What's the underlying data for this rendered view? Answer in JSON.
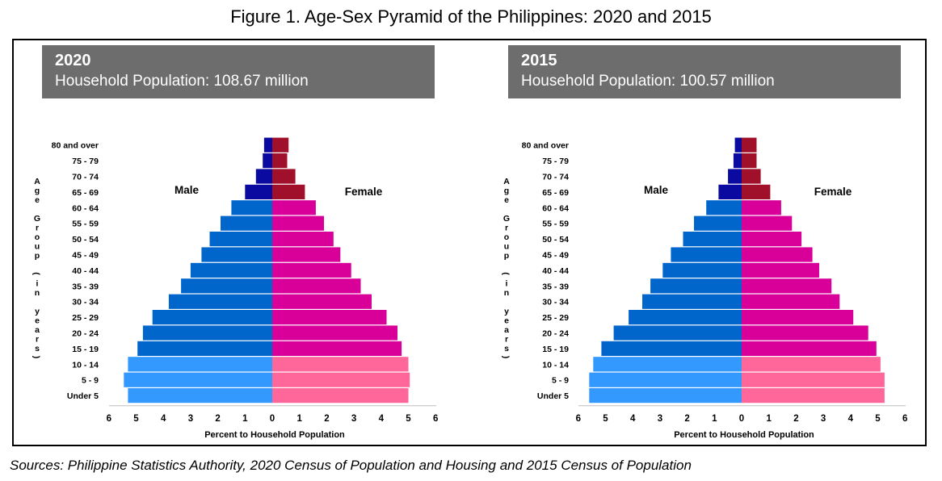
{
  "figure_title": "Figure 1. Age-Sex Pyramid of the Philippines: 2020 and 2015",
  "sources": "Sources: Philippine Statistics Authority, 2020 Census of Population and Housing and 2015 Census of Population",
  "colors": {
    "male_old": "#0a0aa0",
    "male_mid": "#0066cc",
    "male_young": "#3399ff",
    "female_old": "#a0102a",
    "female_mid": "#d9009a",
    "female_young": "#ff6699",
    "header_bg": "#6d6d6d"
  },
  "chart_data": [
    {
      "type": "bar",
      "year": "2020",
      "subtitle": "Household Population: 108.67 million",
      "ylabel": "Age Group (in years)",
      "xlabel": "Percent to Household Population",
      "male_label": "Male",
      "female_label": "Female",
      "xlim": [
        -6,
        6
      ],
      "x_ticks": [
        "6",
        "5",
        "4",
        "3",
        "2",
        "1",
        "0",
        "1",
        "2",
        "3",
        "4",
        "5",
        "6"
      ],
      "categories": [
        "80 and over",
        "75 - 79",
        "70 - 74",
        "65 - 69",
        "60 - 64",
        "55 - 59",
        "50 - 54",
        "45 - 49",
        "40 - 44",
        "35 - 39",
        "30 - 34",
        "25 - 29",
        "20 - 24",
        "15 - 19",
        "10 - 14",
        "5 - 9",
        "Under 5"
      ],
      "series": [
        {
          "name": "Male",
          "values": [
            0.3,
            0.35,
            0.6,
            1.0,
            1.5,
            1.9,
            2.3,
            2.6,
            3.0,
            3.35,
            3.8,
            4.4,
            4.75,
            4.95,
            5.3,
            5.45,
            5.3
          ]
        },
        {
          "name": "Female",
          "values": [
            0.6,
            0.55,
            0.85,
            1.2,
            1.6,
            1.9,
            2.25,
            2.5,
            2.9,
            3.25,
            3.65,
            4.2,
            4.6,
            4.75,
            5.0,
            5.05,
            5.0
          ]
        }
      ]
    },
    {
      "type": "bar",
      "year": "2015",
      "subtitle": "Household Population: 100.57 million",
      "ylabel": "Age Group (in years)",
      "xlabel": "Percent to Household Population",
      "male_label": "Male",
      "female_label": "Female",
      "xlim": [
        -6,
        6
      ],
      "x_ticks": [
        "6",
        "5",
        "4",
        "3",
        "2",
        "1",
        "0",
        "1",
        "2",
        "3",
        "4",
        "5",
        "6"
      ],
      "categories": [
        "80 and over",
        "75 - 79",
        "70 - 74",
        "65 - 69",
        "60 - 64",
        "55 - 59",
        "50 - 54",
        "45 - 49",
        "40 - 44",
        "35 - 39",
        "30 - 34",
        "25 - 29",
        "20 - 24",
        "15 - 19",
        "10 - 14",
        "5 - 9",
        "Under 5"
      ],
      "series": [
        {
          "name": "Male",
          "values": [
            0.25,
            0.3,
            0.5,
            0.85,
            1.3,
            1.75,
            2.15,
            2.6,
            2.9,
            3.35,
            3.65,
            4.15,
            4.7,
            5.15,
            5.45,
            5.6,
            5.6
          ]
        },
        {
          "name": "Female",
          "values": [
            0.55,
            0.55,
            0.7,
            1.05,
            1.45,
            1.85,
            2.2,
            2.6,
            2.85,
            3.3,
            3.6,
            4.1,
            4.65,
            4.95,
            5.1,
            5.25,
            5.25
          ]
        }
      ]
    }
  ]
}
